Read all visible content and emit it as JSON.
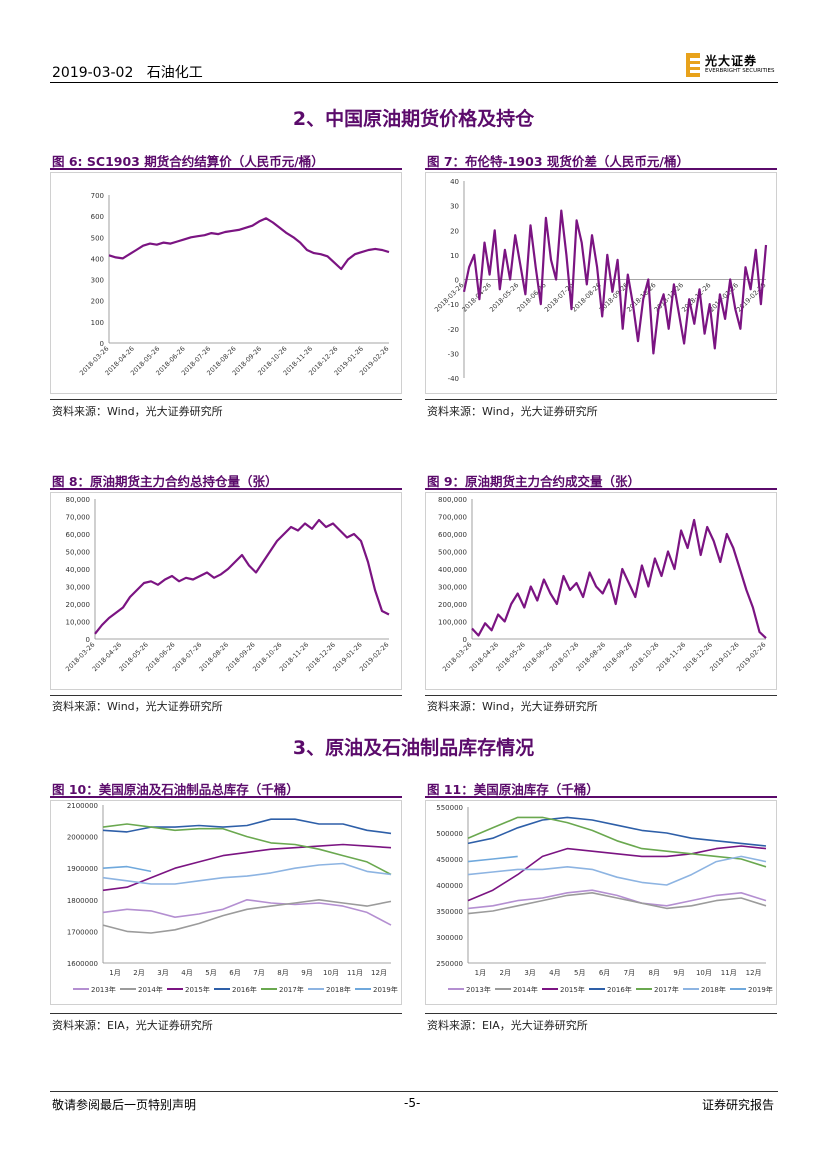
{
  "header": {
    "date": "2019-03-02",
    "category": "石油化工",
    "logo_text": "光大证券",
    "logo_sub": "EVERBRIGHT SECURITIES"
  },
  "sections": {
    "s2": "2、中国原油期货价格及持仓",
    "s3": "3、原油及石油制品库存情况"
  },
  "figures": {
    "f6": {
      "title": "图 6:   SC1903 期货合约结算价（人民币元/桶）",
      "source": "资料来源：Wind，光大证券研究所"
    },
    "f7": {
      "title": "图 7：布伦特-1903 现货价差（人民币元/桶）",
      "source": "资料来源：Wind，光大证券研究所"
    },
    "f8": {
      "title": "图 8：原油期货主力合约总持仓量（张）",
      "source": "资料来源：Wind，光大证券研究所"
    },
    "f9": {
      "title": "图 9：原油期货主力合约成交量（张）",
      "source": "资料来源：Wind，光大证券研究所"
    },
    "f10": {
      "title": "图 10：美国原油及石油制品总库存（千桶）",
      "source": "资料来源：EIA，光大证券研究所"
    },
    "f11": {
      "title": "图 11：美国原油库存（千桶）",
      "source": "资料来源：EIA，光大证券研究所"
    }
  },
  "footer": {
    "left": "敬请参阅最后一页特别声明",
    "center": "-5-",
    "right": "证券研究报告"
  },
  "chart_data": [
    {
      "id": "f6",
      "type": "line",
      "color": "#7b1482",
      "ylim": [
        0,
        700
      ],
      "yticks": [
        "0",
        "100",
        "200",
        "300",
        "400",
        "500",
        "600",
        "700"
      ],
      "xticks": [
        "2018-03-26",
        "2018-04-26",
        "2018-05-26",
        "2018-06-26",
        "2018-07-26",
        "2018-08-26",
        "2018-09-26",
        "2018-10-26",
        "2018-11-26",
        "2018-12-26",
        "2019-01-26",
        "2019-02-26"
      ],
      "values": [
        415,
        405,
        400,
        420,
        440,
        460,
        470,
        465,
        475,
        470,
        480,
        490,
        500,
        505,
        510,
        520,
        515,
        525,
        530,
        535,
        545,
        555,
        575,
        590,
        570,
        545,
        520,
        500,
        475,
        440,
        425,
        420,
        410,
        380,
        350,
        395,
        420,
        430,
        440,
        445,
        440,
        430
      ]
    },
    {
      "id": "f7",
      "type": "line",
      "color": "#7b1482",
      "ylim": [
        -40,
        40
      ],
      "yticks": [
        "-40",
        "-30",
        "-20",
        "-10",
        "0",
        "10",
        "20",
        "30",
        "40"
      ],
      "xticks": [
        "2018-03-26",
        "2018-04-26",
        "2018-05-26",
        "2018-06-26",
        "2018-07-26",
        "2018-08-26",
        "2018-09-26",
        "2018-10-26",
        "2018-11-26",
        "2018-12-26",
        "2019-01-26",
        "2019-02-26"
      ],
      "values": [
        -5,
        5,
        10,
        -8,
        15,
        2,
        20,
        -4,
        12,
        0,
        18,
        6,
        -6,
        22,
        5,
        -10,
        25,
        8,
        0,
        28,
        10,
        -12,
        24,
        15,
        -2,
        18,
        5,
        -15,
        10,
        -5,
        8,
        -20,
        2,
        -10,
        -25,
        -8,
        0,
        -30,
        -12,
        -6,
        -20,
        -2,
        -14,
        -26,
        -8,
        -18,
        -4,
        -22,
        -10,
        -28,
        -6,
        -16,
        0,
        -12,
        -20,
        5,
        -4,
        12,
        -10,
        14
      ]
    },
    {
      "id": "f8",
      "type": "line",
      "color": "#7b1482",
      "ylim": [
        0,
        80000
      ],
      "yticks": [
        "0",
        "10,000",
        "20,000",
        "30,000",
        "40,000",
        "50,000",
        "60,000",
        "70,000",
        "80,000"
      ],
      "xticks": [
        "2018-03-26",
        "2018-04-26",
        "2018-05-26",
        "2018-06-26",
        "2018-07-26",
        "2018-08-26",
        "2018-09-26",
        "2018-10-26",
        "2018-11-26",
        "2018-12-26",
        "2019-01-26",
        "2019-02-26"
      ],
      "values": [
        3000,
        8000,
        12000,
        15000,
        18000,
        24000,
        28000,
        32000,
        33000,
        31000,
        34000,
        36000,
        33000,
        35000,
        34000,
        36000,
        38000,
        35000,
        37000,
        40000,
        44000,
        48000,
        42000,
        38000,
        44000,
        50000,
        56000,
        60000,
        64000,
        62000,
        66000,
        63000,
        68000,
        64000,
        66000,
        62000,
        58000,
        60000,
        56000,
        44000,
        28000,
        16000,
        14000
      ]
    },
    {
      "id": "f9",
      "type": "line",
      "color": "#7b1482",
      "ylim": [
        0,
        800000
      ],
      "yticks": [
        "0",
        "100,000",
        "200,000",
        "300,000",
        "400,000",
        "500,000",
        "600,000",
        "700,000",
        "800,000"
      ],
      "xticks": [
        "2018-03-26",
        "2018-04-26",
        "2018-05-26",
        "2018-06-26",
        "2018-07-26",
        "2018-08-26",
        "2018-09-26",
        "2018-10-26",
        "2018-11-26",
        "2018-12-26",
        "2019-01-26",
        "2019-02-26"
      ],
      "values": [
        60000,
        20000,
        90000,
        50000,
        140000,
        100000,
        200000,
        260000,
        180000,
        300000,
        220000,
        340000,
        260000,
        200000,
        360000,
        280000,
        320000,
        240000,
        380000,
        300000,
        260000,
        340000,
        200000,
        400000,
        320000,
        240000,
        420000,
        300000,
        460000,
        360000,
        500000,
        400000,
        620000,
        520000,
        680000,
        480000,
        640000,
        560000,
        440000,
        600000,
        520000,
        400000,
        280000,
        180000,
        40000,
        5000
      ]
    },
    {
      "id": "f10",
      "type": "line",
      "ylim": [
        1600000,
        2100000
      ],
      "yticks": [
        "1600000",
        "1700000",
        "1800000",
        "1900000",
        "2000000",
        "2100000"
      ],
      "xticks": [
        "1月",
        "2月",
        "3月",
        "4月",
        "5月",
        "6月",
        "7月",
        "8月",
        "9月",
        "10月",
        "11月",
        "12月"
      ],
      "series": [
        {
          "name": "2013年",
          "color": "#b48fd1",
          "values": [
            1760000,
            1770000,
            1765000,
            1745000,
            1755000,
            1770000,
            1800000,
            1790000,
            1785000,
            1790000,
            1780000,
            1760000,
            1720000
          ]
        },
        {
          "name": "2014年",
          "color": "#9b9b9b",
          "values": [
            1720000,
            1700000,
            1695000,
            1705000,
            1725000,
            1750000,
            1770000,
            1780000,
            1790000,
            1800000,
            1790000,
            1780000,
            1795000
          ]
        },
        {
          "name": "2015年",
          "color": "#7b1482",
          "values": [
            1830000,
            1840000,
            1870000,
            1900000,
            1920000,
            1940000,
            1950000,
            1960000,
            1965000,
            1970000,
            1975000,
            1970000,
            1965000
          ]
        },
        {
          "name": "2016年",
          "color": "#2e5fa8",
          "values": [
            2020000,
            2015000,
            2030000,
            2030000,
            2035000,
            2030000,
            2035000,
            2055000,
            2055000,
            2040000,
            2040000,
            2020000,
            2010000
          ]
        },
        {
          "name": "2017年",
          "color": "#6aa84f",
          "values": [
            2030000,
            2040000,
            2030000,
            2020000,
            2025000,
            2025000,
            2000000,
            1980000,
            1975000,
            1960000,
            1940000,
            1920000,
            1880000
          ]
        },
        {
          "name": "2018年",
          "color": "#8db4e2",
          "values": [
            1870000,
            1860000,
            1850000,
            1850000,
            1860000,
            1870000,
            1875000,
            1885000,
            1900000,
            1910000,
            1915000,
            1890000,
            1880000
          ]
        },
        {
          "name": "2019年",
          "color": "#6fa8dc",
          "values": [
            1900000,
            1905000,
            1890000
          ]
        }
      ]
    },
    {
      "id": "f11",
      "type": "line",
      "ylim": [
        250000,
        550000
      ],
      "yticks": [
        "250000",
        "300000",
        "350000",
        "400000",
        "450000",
        "500000",
        "550000"
      ],
      "xticks": [
        "1月",
        "2月",
        "3月",
        "4月",
        "5月",
        "6月",
        "7月",
        "8月",
        "9月",
        "10月",
        "11月",
        "12月"
      ],
      "series": [
        {
          "name": "2013年",
          "color": "#b48fd1",
          "values": [
            355000,
            360000,
            370000,
            375000,
            385000,
            390000,
            380000,
            365000,
            360000,
            370000,
            380000,
            385000,
            370000
          ]
        },
        {
          "name": "2014年",
          "color": "#9b9b9b",
          "values": [
            345000,
            350000,
            360000,
            370000,
            380000,
            385000,
            375000,
            365000,
            355000,
            360000,
            370000,
            375000,
            360000
          ]
        },
        {
          "name": "2015年",
          "color": "#7b1482",
          "values": [
            370000,
            390000,
            420000,
            455000,
            470000,
            465000,
            460000,
            455000,
            455000,
            460000,
            470000,
            475000,
            470000
          ]
        },
        {
          "name": "2016年",
          "color": "#2e5fa8",
          "values": [
            480000,
            490000,
            510000,
            525000,
            530000,
            525000,
            515000,
            505000,
            500000,
            490000,
            485000,
            480000,
            475000
          ]
        },
        {
          "name": "2017年",
          "color": "#6aa84f",
          "values": [
            490000,
            510000,
            530000,
            530000,
            520000,
            505000,
            485000,
            470000,
            465000,
            460000,
            455000,
            450000,
            435000
          ]
        },
        {
          "name": "2018年",
          "color": "#8db4e2",
          "values": [
            420000,
            425000,
            430000,
            430000,
            435000,
            430000,
            415000,
            405000,
            400000,
            420000,
            445000,
            455000,
            445000
          ]
        },
        {
          "name": "2019年",
          "color": "#6fa8dc",
          "values": [
            445000,
            450000,
            455000
          ]
        }
      ]
    }
  ]
}
